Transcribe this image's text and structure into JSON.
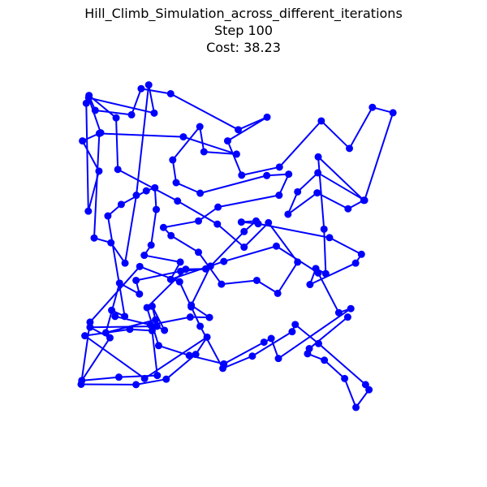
{
  "chart_data": {
    "type": "line",
    "title": "Hill_Climb_Simulation_across_different_iterations",
    "subtitle_step": "Step 100",
    "subtitle_cost": "Cost: 38.23",
    "color": "#0000ff",
    "axes_visible": false,
    "grid": false,
    "xlim": [
      -0.05,
      1.05
    ],
    "ylim": [
      -0.05,
      1.05
    ],
    "points": [
      [
        0.024,
        0.918
      ],
      [
        0.03,
        0.6
      ],
      [
        0.061,
        0.718
      ],
      [
        0.013,
        0.807
      ],
      [
        0.066,
        0.831
      ],
      [
        0.031,
        0.934
      ],
      [
        0.222,
        0.889
      ],
      [
        0.206,
        0.972
      ],
      [
        0.17,
        0.647
      ],
      [
        0.137,
        0.447
      ],
      [
        0.096,
        0.507
      ],
      [
        0.047,
        0.521
      ],
      [
        0.062,
        0.829
      ],
      [
        0.307,
        0.819
      ],
      [
        0.462,
        0.768
      ],
      [
        0.367,
        0.775
      ],
      [
        0.355,
        0.849
      ],
      [
        0.276,
        0.751
      ],
      [
        0.286,
        0.684
      ],
      [
        0.356,
        0.653
      ],
      [
        0.55,
        0.705
      ],
      [
        0.614,
        0.709
      ],
      [
        0.586,
        0.647
      ],
      [
        0.408,
        0.612
      ],
      [
        0.351,
        0.571
      ],
      [
        0.249,
        0.552
      ],
      [
        0.271,
        0.528
      ],
      [
        0.351,
        0.479
      ],
      [
        0.418,
        0.385
      ],
      [
        0.521,
        0.396
      ],
      [
        0.582,
        0.358
      ],
      [
        0.64,
        0.45
      ],
      [
        0.555,
        0.566
      ],
      [
        0.484,
        0.494
      ],
      [
        0.406,
        0.562
      ],
      [
        0.29,
        0.63
      ],
      [
        0.116,
        0.723
      ],
      [
        0.111,
        0.875
      ],
      [
        0.032,
        0.941
      ],
      [
        0.05,
        0.897
      ],
      [
        0.156,
        0.884
      ],
      [
        0.184,
        0.961
      ],
      [
        0.27,
        0.946
      ],
      [
        0.467,
        0.84
      ],
      [
        0.551,
        0.877
      ],
      [
        0.436,
        0.807
      ],
      [
        0.477,
        0.706
      ],
      [
        0.587,
        0.73
      ],
      [
        0.709,
        0.866
      ],
      [
        0.791,
        0.785
      ],
      [
        0.858,
        0.906
      ],
      [
        0.918,
        0.89
      ],
      [
        0.835,
        0.632
      ],
      [
        0.699,
        0.713
      ],
      [
        0.64,
        0.657
      ],
      [
        0.612,
        0.591
      ],
      [
        0.697,
        0.654
      ],
      [
        0.787,
        0.607
      ],
      [
        0.833,
        0.632
      ],
      [
        0.7,
        0.76
      ],
      [
        0.717,
        0.547
      ],
      [
        0.722,
        0.416
      ],
      [
        0.693,
        0.431
      ],
      [
        0.676,
        0.384
      ],
      [
        0.809,
        0.447
      ],
      [
        0.826,
        0.473
      ],
      [
        0.733,
        0.522
      ],
      [
        0.525,
        0.563
      ],
      [
        0.476,
        0.568
      ],
      [
        0.519,
        0.571
      ],
      [
        0.484,
        0.54
      ],
      [
        0.386,
        0.438
      ],
      [
        0.33,
        0.323
      ],
      [
        0.383,
        0.287
      ],
      [
        0.327,
        0.288
      ],
      [
        0.211,
        0.265
      ],
      [
        0.108,
        0.29
      ],
      [
        0.098,
        0.308
      ],
      [
        0.136,
        0.29
      ],
      [
        0.087,
        0.586
      ],
      [
        0.126,
        0.62
      ],
      [
        0.199,
        0.66
      ],
      [
        0.224,
        0.669
      ],
      [
        0.228,
        0.605
      ],
      [
        0.213,
        0.5
      ],
      [
        0.193,
        0.47
      ],
      [
        0.298,
        0.45
      ],
      [
        0.27,
        0.399
      ],
      [
        0.425,
        0.452
      ],
      [
        0.578,
        0.497
      ],
      [
        0.7,
        0.418
      ],
      [
        0.76,
        0.301
      ],
      [
        0.795,
        0.313
      ],
      [
        0.584,
        0.166
      ],
      [
        0.563,
        0.225
      ],
      [
        0.542,
        0.214
      ],
      [
        0.425,
        0.15
      ],
      [
        0.324,
        0.175
      ],
      [
        0.235,
        0.204
      ],
      [
        0.201,
        0.316
      ],
      [
        0.314,
        0.429
      ],
      [
        0.372,
        0.43
      ],
      [
        0.299,
        0.423
      ],
      [
        0.169,
        0.396
      ],
      [
        0.179,
        0.356
      ],
      [
        0.121,
        0.388
      ],
      [
        0.081,
        0.242
      ],
      [
        0.226,
        0.28
      ],
      [
        0.216,
        0.32
      ],
      [
        0.252,
        0.249
      ],
      [
        0.23,
        0.261
      ],
      [
        0.035,
        0.258
      ],
      [
        0.093,
        0.227
      ],
      [
        0.011,
        0.101
      ],
      [
        0.119,
        0.111
      ],
      [
        0.231,
        0.116
      ],
      [
        0.216,
        0.248
      ],
      [
        0.151,
        0.252
      ],
      [
        0.02,
        0.233
      ],
      [
        0.194,
        0.107
      ],
      [
        0.376,
        0.229
      ],
      [
        0.343,
        0.178
      ],
      [
        0.257,
        0.105
      ],
      [
        0.169,
        0.089
      ],
      [
        0.009,
        0.09
      ],
      [
        0.035,
        0.273
      ],
      [
        0.18,
        0.437
      ],
      [
        0.296,
        0.392
      ],
      [
        0.33,
        0.318
      ],
      [
        0.356,
        0.261
      ],
      [
        0.422,
        0.137
      ],
      [
        0.508,
        0.173
      ],
      [
        0.624,
        0.245
      ],
      [
        0.633,
        0.266
      ],
      [
        0.701,
        0.21
      ],
      [
        0.838,
        0.089
      ],
      [
        0.848,
        0.074
      ],
      [
        0.81,
        0.022
      ],
      [
        0.777,
        0.107
      ],
      [
        0.718,
        0.161
      ],
      [
        0.669,
        0.18
      ],
      [
        0.674,
        0.195
      ],
      [
        0.786,
        0.288
      ]
    ]
  }
}
